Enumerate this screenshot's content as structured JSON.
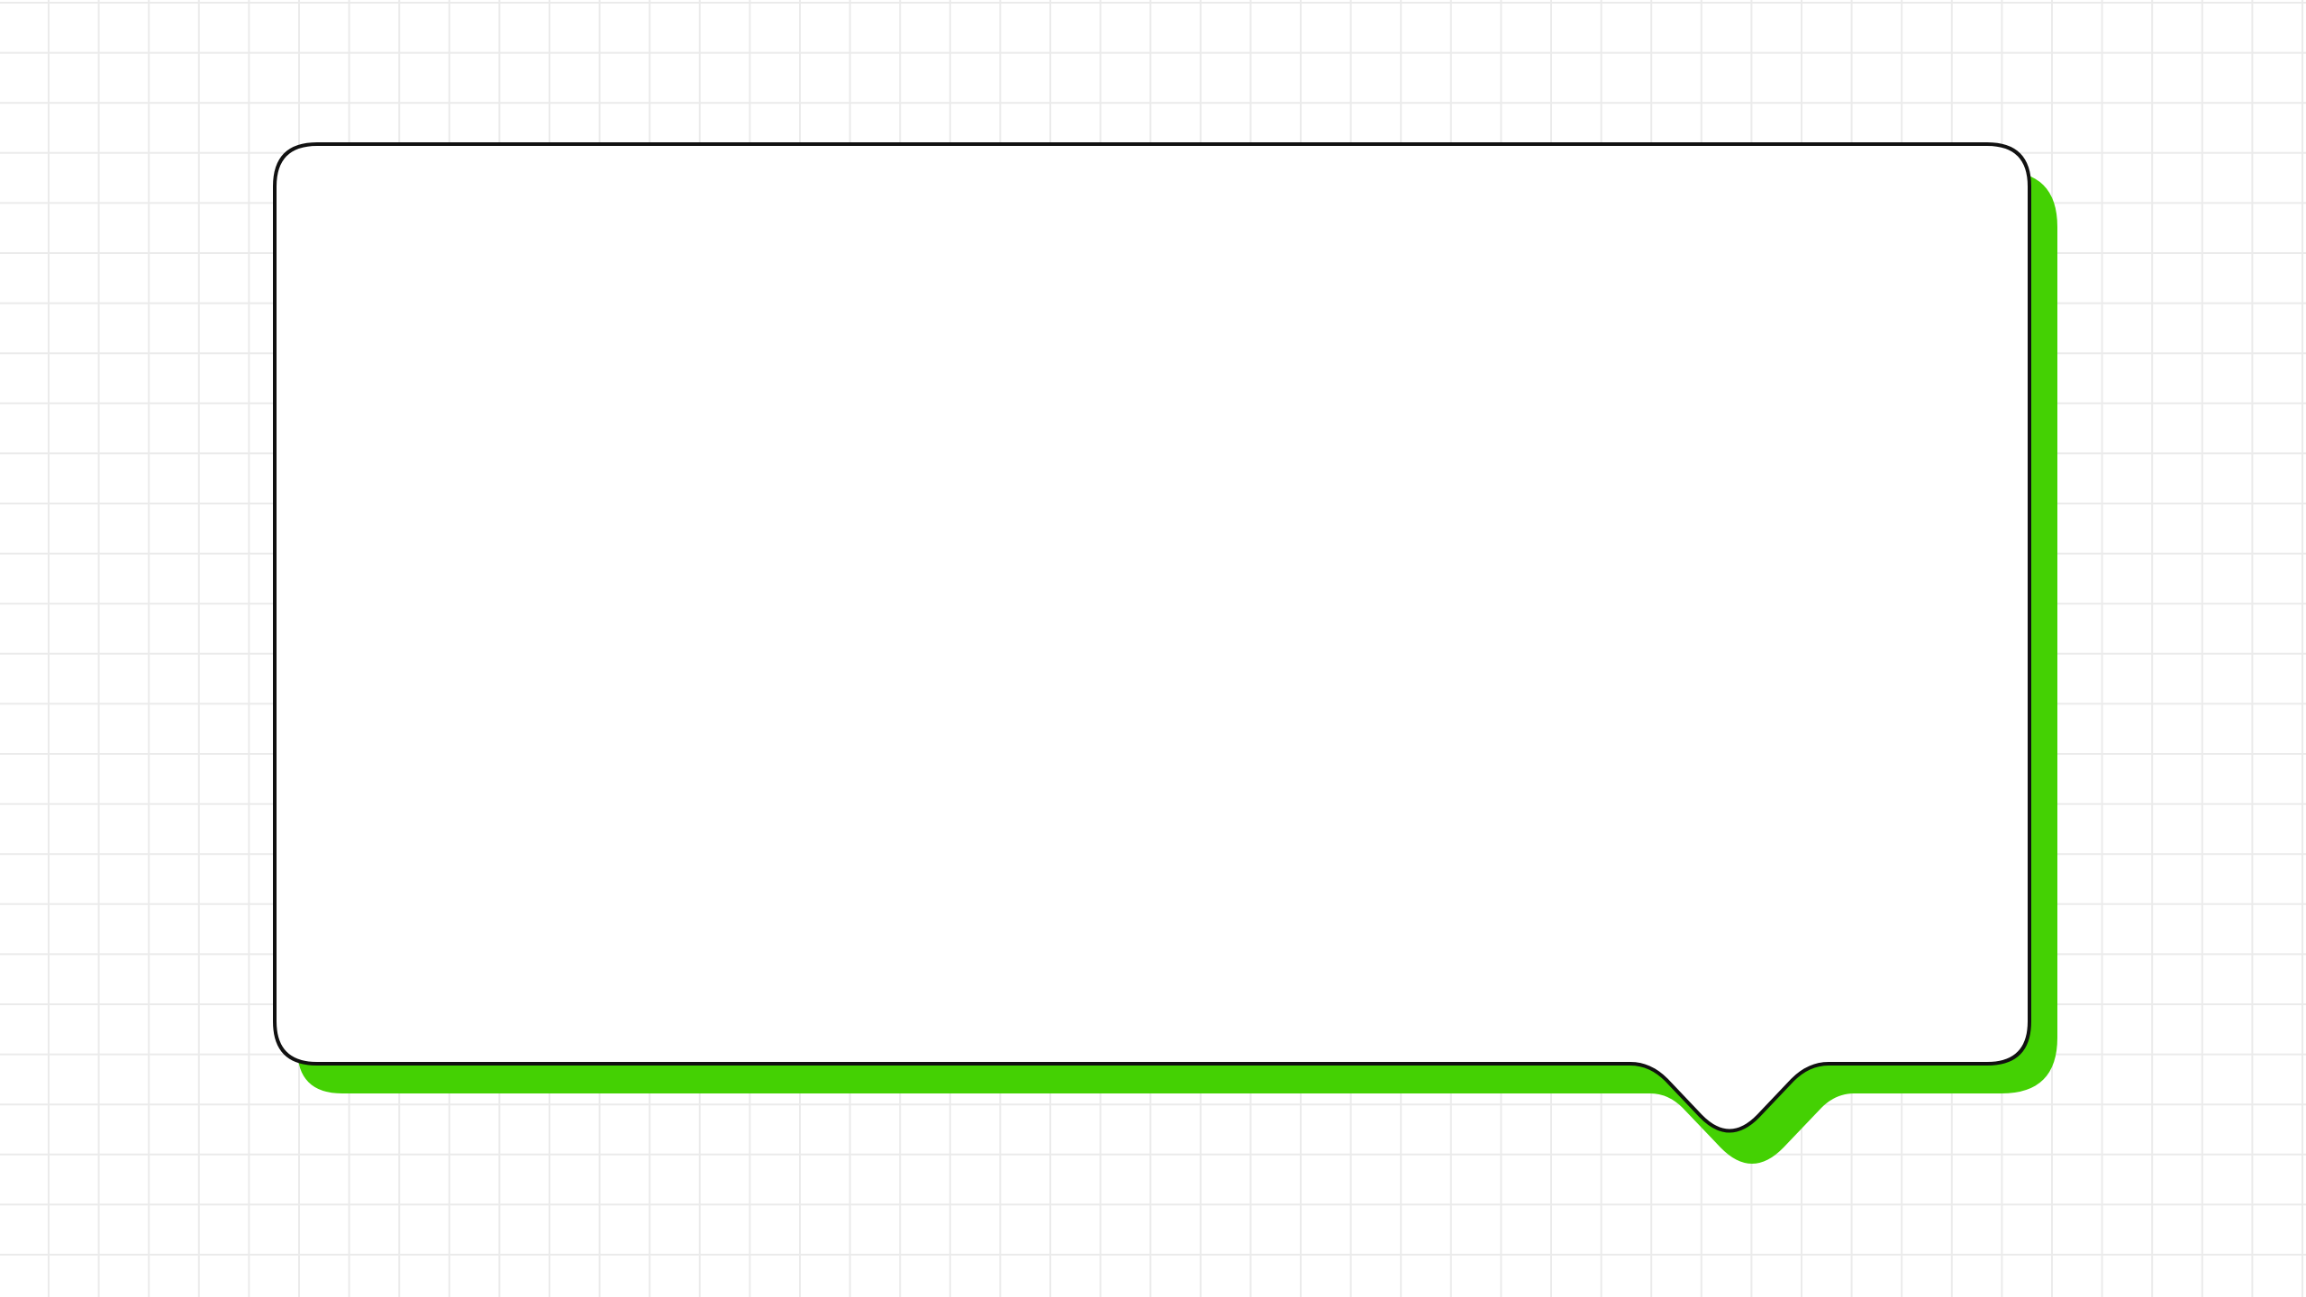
{
  "scene": {
    "description_text": "",
    "colors": {
      "background": "#ffffff",
      "grid_line": "#ebebeb",
      "bubble_fill": "#ffffff",
      "bubble_outline": "#111111",
      "shadow": "#44d103"
    }
  },
  "speech_bubble": {
    "text": "",
    "tail_side": "bottom-right"
  }
}
